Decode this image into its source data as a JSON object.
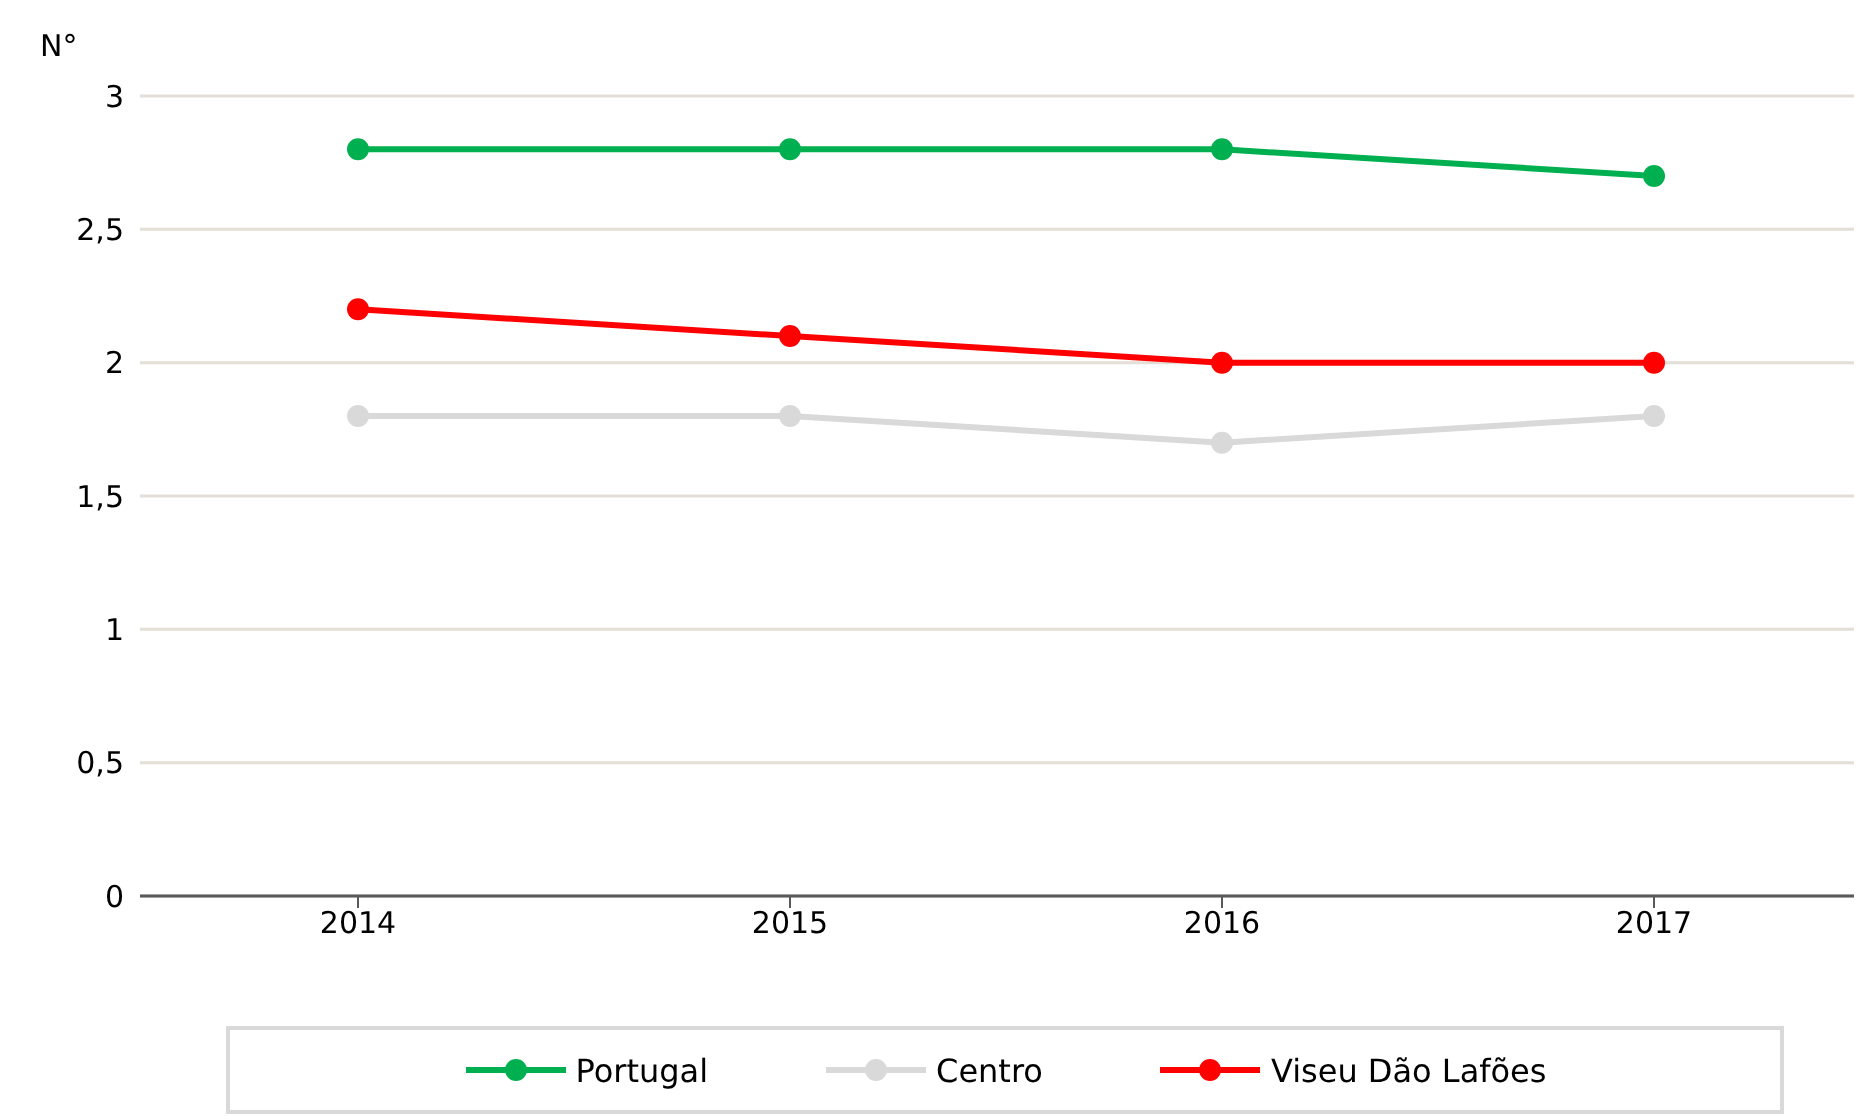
{
  "chart_data": {
    "type": "line",
    "ylabel": "N°",
    "categories": [
      "2014",
      "2015",
      "2016",
      "2017"
    ],
    "series": [
      {
        "name": "Portugal",
        "color": "#00b050",
        "values": [
          2.8,
          2.8,
          2.8,
          2.7
        ]
      },
      {
        "name": "Centro",
        "color": "#d9d9d9",
        "values": [
          1.8,
          1.8,
          1.7,
          1.8
        ]
      },
      {
        "name": "Viseu Dão Lafões",
        "color": "#ff0000",
        "values": [
          2.2,
          2.1,
          2.0,
          2.0
        ]
      }
    ],
    "ylim": [
      0,
      3
    ],
    "yticks": [
      0,
      {
        "value": 0.5,
        "label": "0,5"
      },
      1,
      {
        "value": 1.5,
        "label": "1,5"
      },
      2,
      {
        "value": 2.5,
        "label": "2,5"
      },
      3
    ],
    "grid": "y",
    "legend": "bottom",
    "marker": "circle",
    "line_style": "solid"
  }
}
